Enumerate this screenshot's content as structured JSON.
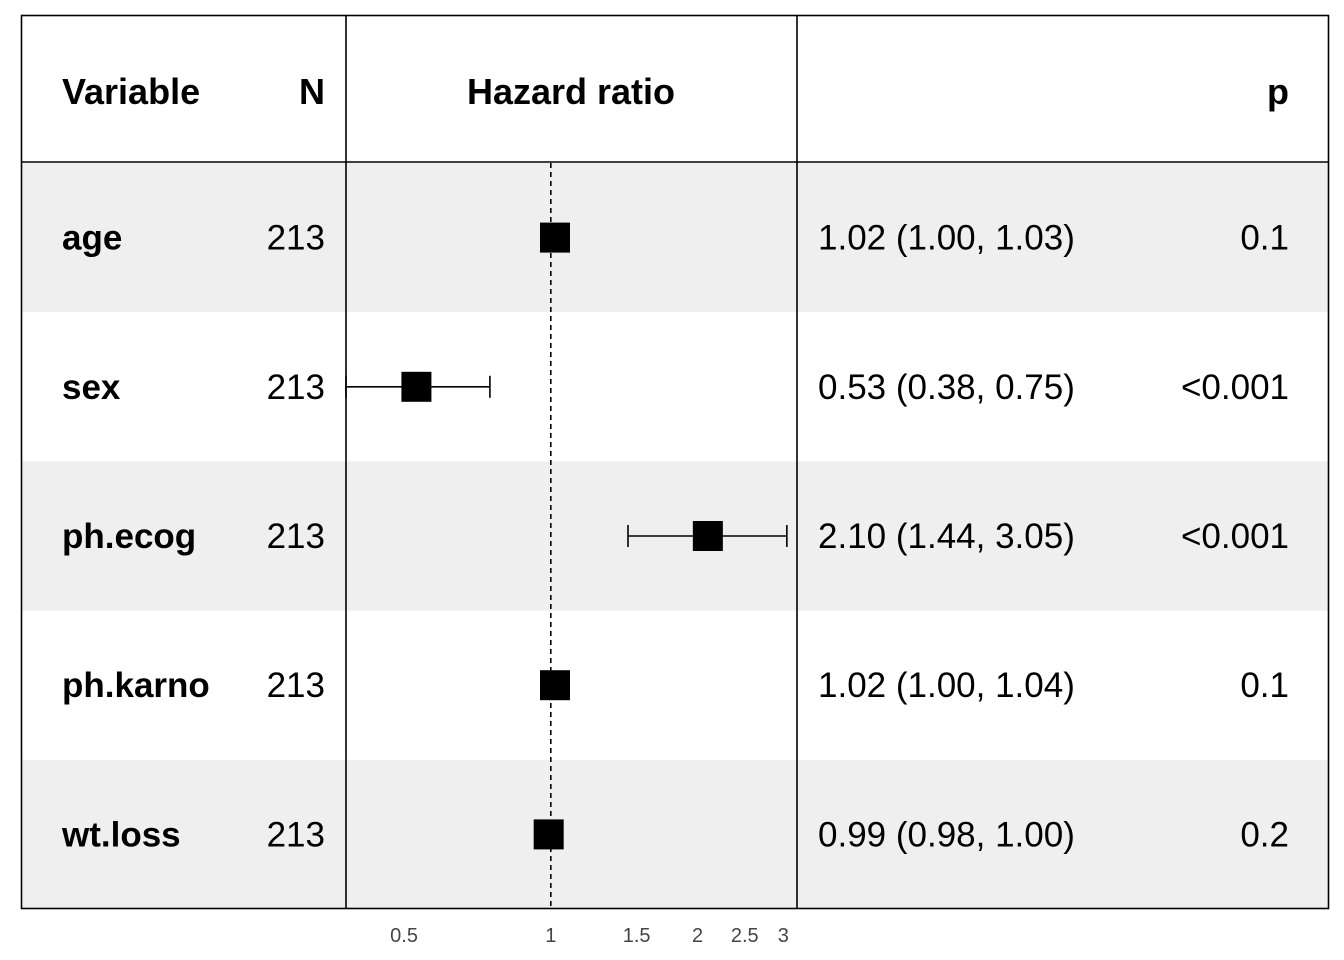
{
  "chart_data": {
    "type": "forest",
    "header": {
      "variable": "Variable",
      "n": "N",
      "estimate": "Hazard ratio",
      "ci": "",
      "p": "p"
    },
    "x_scale": "log",
    "xlim": [
      0.38,
      3.2
    ],
    "reference_line": 1,
    "x_ticks": [
      {
        "value": 0.5,
        "label": "0.5"
      },
      {
        "value": 1,
        "label": "1"
      },
      {
        "value": 1.5,
        "label": "1.5"
      },
      {
        "value": 2,
        "label": "2"
      },
      {
        "value": 2.5,
        "label": "2.5"
      },
      {
        "value": 3,
        "label": "3"
      }
    ],
    "rows": [
      {
        "variable": "age",
        "n": "213",
        "hr": 1.02,
        "lower": 1.0,
        "upper": 1.03,
        "ci_text": "1.02 (1.00, 1.03)",
        "p": "0.1"
      },
      {
        "variable": "sex",
        "n": "213",
        "hr": 0.53,
        "lower": 0.38,
        "upper": 0.75,
        "ci_text": "0.53 (0.38, 0.75)",
        "p": "<0.001"
      },
      {
        "variable": "ph.ecog",
        "n": "213",
        "hr": 2.1,
        "lower": 1.44,
        "upper": 3.05,
        "ci_text": "2.10 (1.44, 3.05)",
        "p": "<0.001"
      },
      {
        "variable": "ph.karno",
        "n": "213",
        "hr": 1.02,
        "lower": 1.0,
        "upper": 1.04,
        "ci_text": "1.02 (1.00, 1.04)",
        "p": "0.1"
      },
      {
        "variable": "wt.loss",
        "n": "213",
        "hr": 0.99,
        "lower": 0.98,
        "upper": 1.0,
        "ci_text": "0.99 (0.98, 1.00)",
        "p": "0.2"
      }
    ],
    "colors": {
      "stripe": "#efefef",
      "marker": "#000000",
      "border": "#000000",
      "tick_text": "#444444"
    }
  }
}
